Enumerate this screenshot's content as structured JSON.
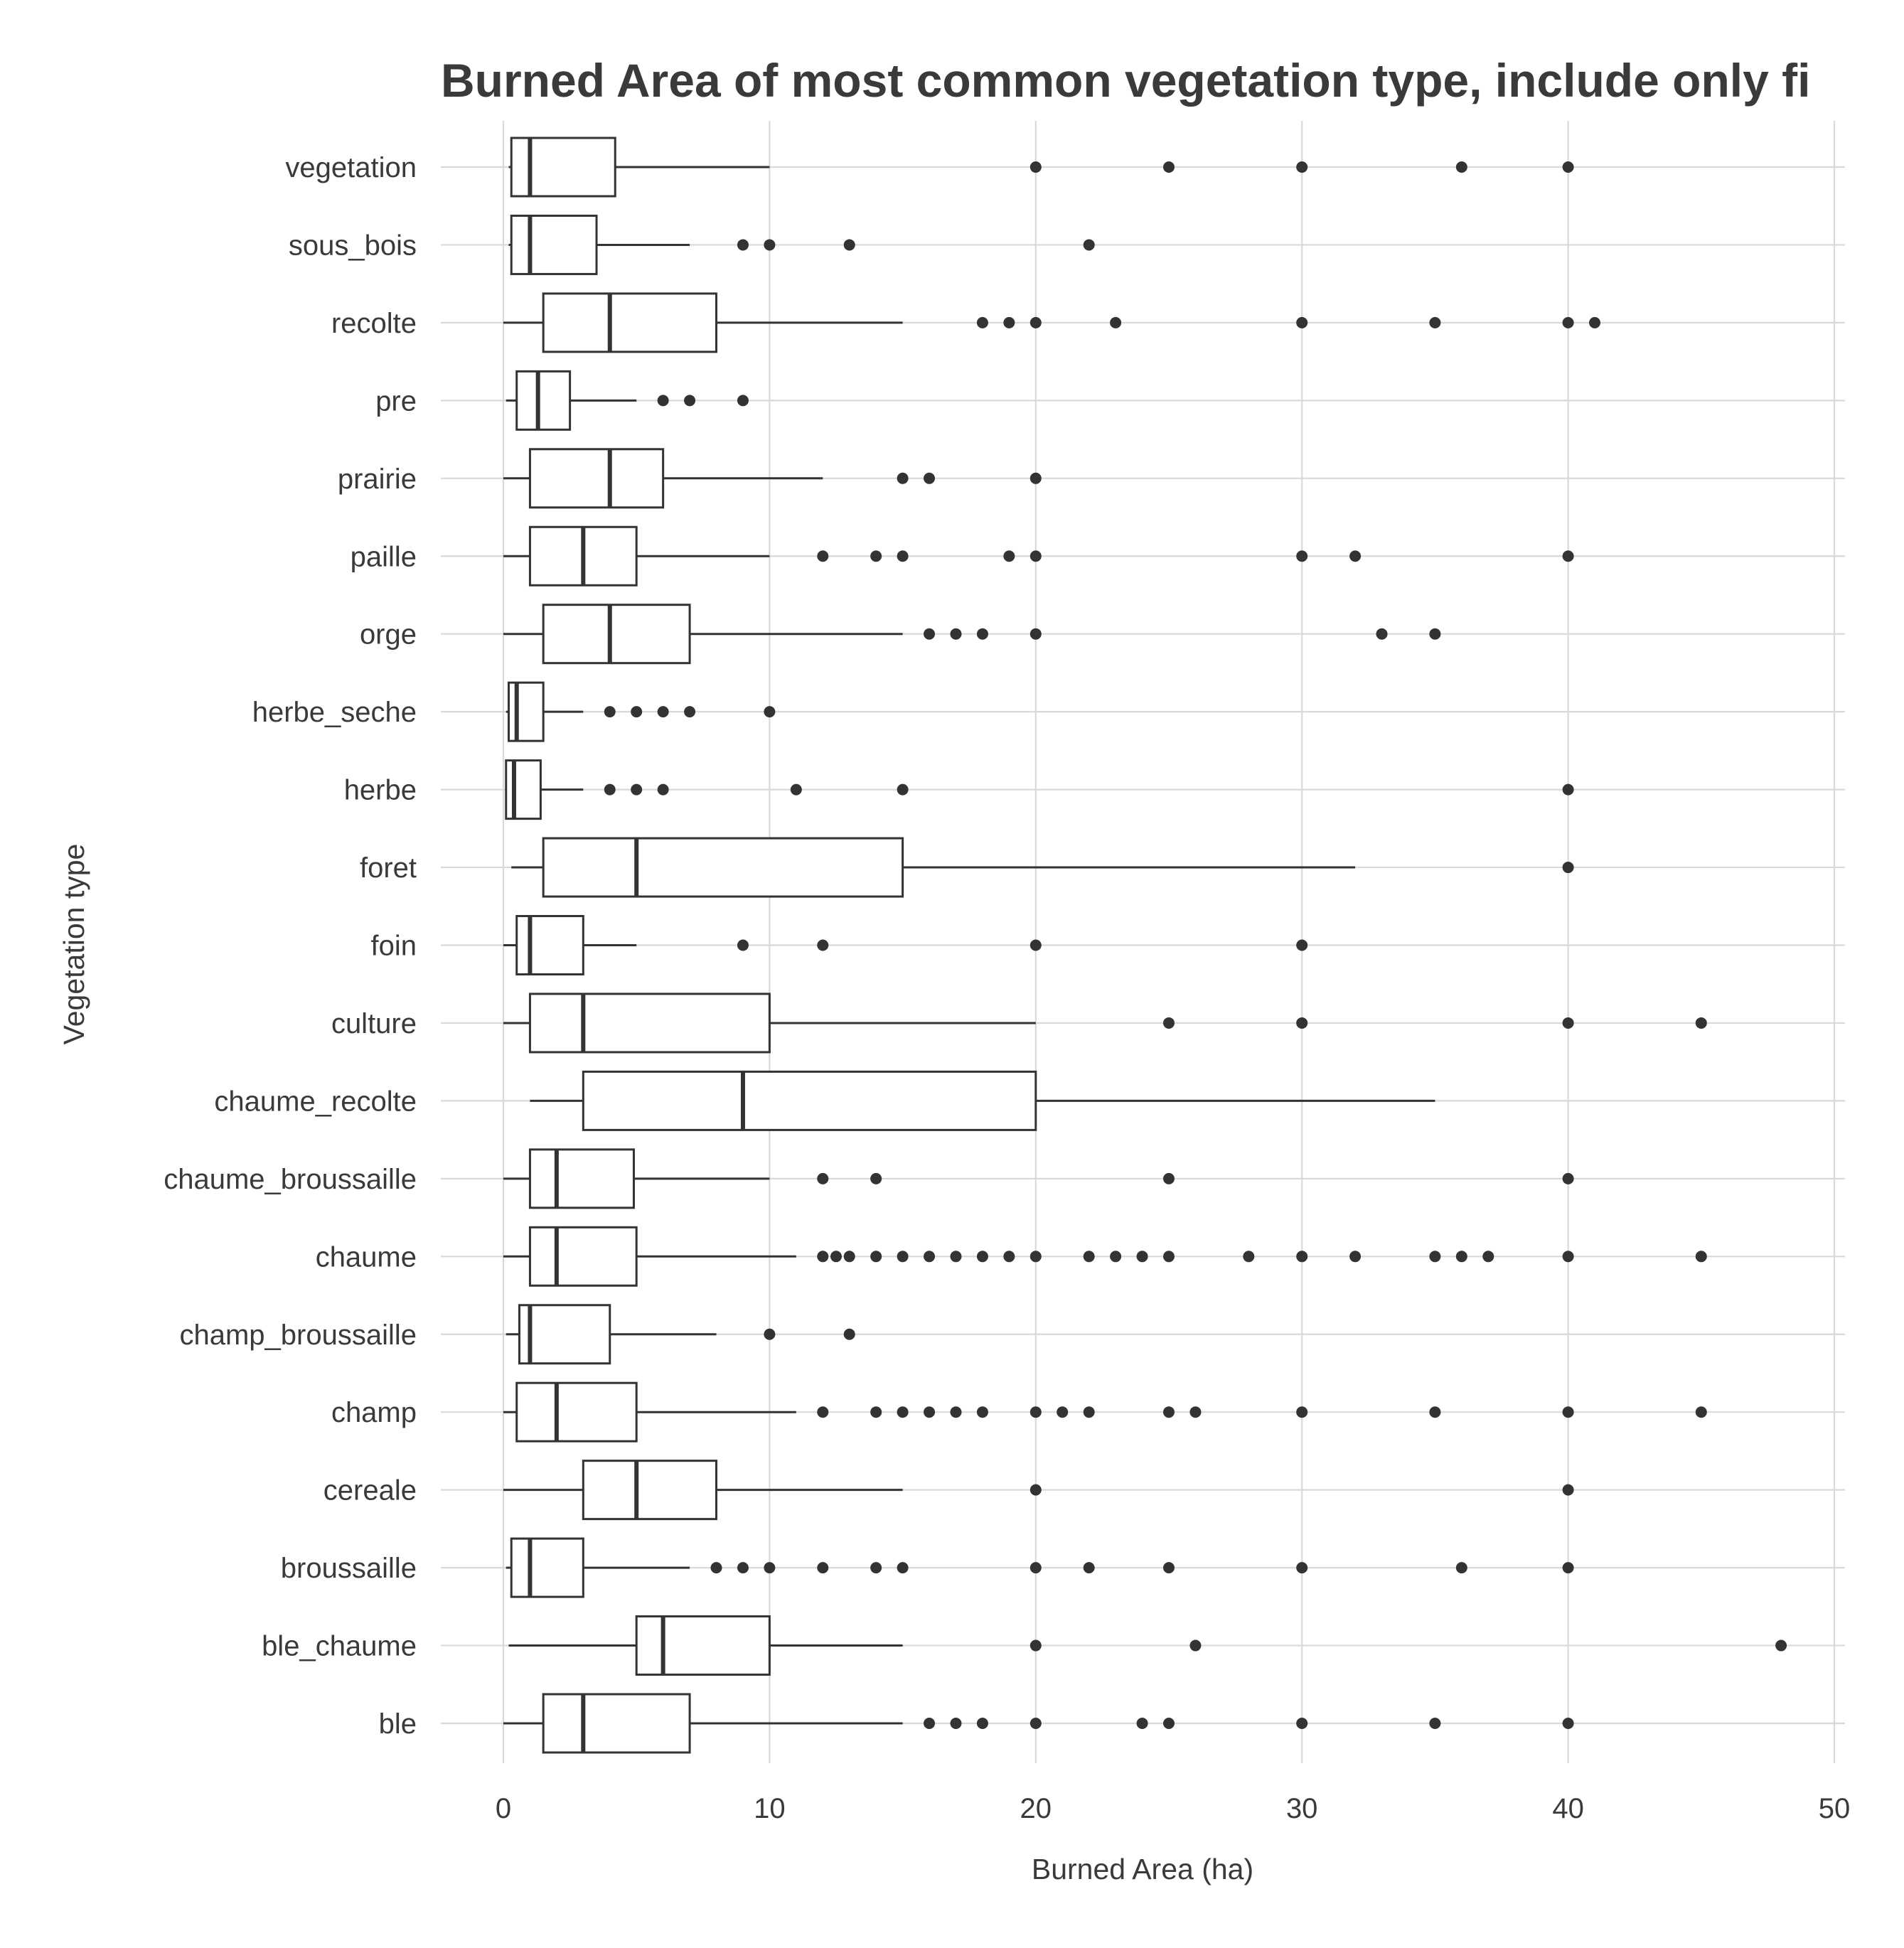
{
  "chart_data": {
    "type": "boxplot",
    "title": "Burned Area of most common vegetation type, include only fi",
    "xlabel": "Burned Area (ha)",
    "ylabel": "Vegetation type",
    "xlim": [
      0,
      50
    ],
    "x_ticks": [
      0,
      10,
      20,
      30,
      40,
      50
    ],
    "grid": true,
    "categories": [
      "vegetation",
      "sous_bois",
      "recolte",
      "pre",
      "prairie",
      "paille",
      "orge",
      "herbe_seche",
      "herbe",
      "foret",
      "foin",
      "culture",
      "chaume_recolte",
      "chaume_broussaille",
      "chaume",
      "champ_broussaille",
      "champ",
      "cereale",
      "broussaille",
      "ble_chaume",
      "ble"
    ],
    "series": [
      {
        "name": "vegetation",
        "min": 0.2,
        "q1": 0.3,
        "median": 1,
        "q3": 4.2,
        "max": 10,
        "outliers": [
          20,
          25,
          30,
          36,
          40
        ]
      },
      {
        "name": "sous_bois",
        "min": 0.2,
        "q1": 0.3,
        "median": 1,
        "q3": 3.5,
        "max": 7,
        "outliers": [
          9,
          10,
          13,
          22
        ]
      },
      {
        "name": "recolte",
        "min": 0,
        "q1": 1.5,
        "median": 4,
        "q3": 8,
        "max": 15,
        "outliers": [
          18,
          19,
          20,
          23,
          30,
          35,
          40,
          41
        ]
      },
      {
        "name": "pre",
        "min": 0.1,
        "q1": 0.5,
        "median": 1.3,
        "q3": 2.5,
        "max": 5,
        "outliers": [
          6,
          7,
          9
        ]
      },
      {
        "name": "prairie",
        "min": 0,
        "q1": 1,
        "median": 4,
        "q3": 6,
        "max": 12,
        "outliers": [
          15,
          16,
          20
        ]
      },
      {
        "name": "paille",
        "min": 0,
        "q1": 1,
        "median": 3,
        "q3": 5,
        "max": 10,
        "outliers": [
          12,
          14,
          15,
          19,
          20,
          30,
          32,
          40
        ]
      },
      {
        "name": "orge",
        "min": 0,
        "q1": 1.5,
        "median": 4,
        "q3": 7,
        "max": 15,
        "outliers": [
          16,
          17,
          18,
          20,
          33,
          35
        ]
      },
      {
        "name": "herbe_seche",
        "min": 0.1,
        "q1": 0.2,
        "median": 0.5,
        "q3": 1.5,
        "max": 3,
        "outliers": [
          4,
          5,
          6,
          7,
          10
        ]
      },
      {
        "name": "herbe",
        "min": 0.1,
        "q1": 0.1,
        "median": 0.4,
        "q3": 1.4,
        "max": 3,
        "outliers": [
          4,
          5,
          6,
          11,
          15,
          40
        ]
      },
      {
        "name": "foret",
        "min": 0.3,
        "q1": 1.5,
        "median": 5,
        "q3": 15,
        "max": 32,
        "outliers": [
          40
        ]
      },
      {
        "name": "foin",
        "min": 0,
        "q1": 0.5,
        "median": 1,
        "q3": 3,
        "max": 5,
        "outliers": [
          9,
          12,
          20,
          30
        ]
      },
      {
        "name": "culture",
        "min": 0,
        "q1": 1,
        "median": 3,
        "q3": 10,
        "max": 20,
        "outliers": [
          25,
          30,
          40,
          45
        ]
      },
      {
        "name": "chaume_recolte",
        "min": 1,
        "q1": 3,
        "median": 9,
        "q3": 20,
        "max": 35,
        "outliers": []
      },
      {
        "name": "chaume_broussaille",
        "min": 0,
        "q1": 1,
        "median": 2,
        "q3": 4.9,
        "max": 10,
        "outliers": [
          12,
          14,
          25,
          40
        ]
      },
      {
        "name": "chaume",
        "min": 0,
        "q1": 1,
        "median": 2,
        "q3": 5,
        "max": 11,
        "outliers": [
          12,
          12.5,
          13,
          14,
          15,
          16,
          17,
          18,
          19,
          20,
          22,
          23,
          24,
          25,
          28,
          30,
          32,
          35,
          36,
          37,
          40,
          45
        ]
      },
      {
        "name": "champ_broussaille",
        "min": 0.1,
        "q1": 0.6,
        "median": 1,
        "q3": 4,
        "max": 8,
        "outliers": [
          10,
          13
        ]
      },
      {
        "name": "champ",
        "min": 0,
        "q1": 0.5,
        "median": 2,
        "q3": 5,
        "max": 11,
        "outliers": [
          12,
          14,
          15,
          16,
          17,
          18,
          20,
          21,
          22,
          25,
          26,
          30,
          35,
          40,
          45
        ]
      },
      {
        "name": "cereale",
        "min": 0,
        "q1": 3,
        "median": 5,
        "q3": 8,
        "max": 15,
        "outliers": [
          20,
          40
        ]
      },
      {
        "name": "broussaille",
        "min": 0.1,
        "q1": 0.3,
        "median": 1,
        "q3": 3,
        "max": 7,
        "outliers": [
          8,
          9,
          10,
          12,
          14,
          15,
          20,
          22,
          25,
          30,
          36,
          40
        ]
      },
      {
        "name": "ble_chaume",
        "min": 0.2,
        "q1": 5,
        "median": 6,
        "q3": 10,
        "max": 15,
        "outliers": [
          20,
          26,
          48
        ]
      },
      {
        "name": "ble",
        "min": 0,
        "q1": 1.5,
        "median": 3,
        "q3": 7,
        "max": 15,
        "outliers": [
          16,
          17,
          18,
          20,
          24,
          25,
          30,
          35,
          40
        ]
      }
    ]
  }
}
